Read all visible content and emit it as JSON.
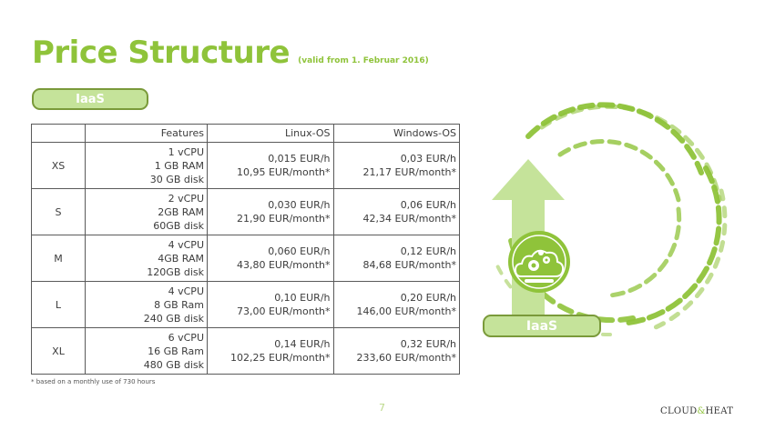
{
  "title": "Price Structure",
  "subtitle": "(valid from 1. Februar 2016)",
  "badge_top": "IaaS",
  "badge_bottom": "IaaS",
  "table": {
    "headers": [
      "",
      "Features",
      "Linux-OS",
      "Windows-OS"
    ],
    "rows": [
      {
        "size": "XS",
        "features": [
          "1 vCPU",
          "1 GB RAM",
          "30 GB disk"
        ],
        "linux": [
          "0,015 EUR/h",
          "10,95 EUR/month*"
        ],
        "windows": [
          "0,03 EUR/h",
          "21,17 EUR/month*"
        ]
      },
      {
        "size": "S",
        "features": [
          "2 vCPU",
          "2GB RAM",
          "60GB disk"
        ],
        "linux": [
          "0,030 EUR/h",
          "21,90 EUR/month*"
        ],
        "windows": [
          "0,06 EUR/h",
          "42,34 EUR/month*"
        ]
      },
      {
        "size": "M",
        "features": [
          "4 vCPU",
          "4GB RAM",
          "120GB disk"
        ],
        "linux": [
          "0,060 EUR/h",
          "43,80 EUR/month*"
        ],
        "windows": [
          "0,12 EUR/h",
          "84,68 EUR/month*"
        ]
      },
      {
        "size": "L",
        "features": [
          "4 vCPU",
          "8 GB Ram",
          "240 GB disk"
        ],
        "linux": [
          "0,10 EUR/h",
          "73,00 EUR/month*"
        ],
        "windows": [
          "0,20 EUR/h",
          "146,00 EUR/month*"
        ]
      },
      {
        "size": "XL",
        "features": [
          "6 vCPU",
          "16 GB Ram",
          "480 GB disk"
        ],
        "linux": [
          "0,14 EUR/h",
          "102,25 EUR/month*"
        ],
        "windows": [
          "0,32 EUR/h",
          "233,60 EUR/month*"
        ]
      }
    ]
  },
  "footnote": "* based on a monthly use of 730 hours",
  "page_number": "7",
  "logo": {
    "left": "CLOUD",
    "amp": "&",
    "right": "HEAT"
  },
  "colors": {
    "accent": "#8fc33a",
    "light_accent": "#c5e39a",
    "border": "#7a9a3a"
  }
}
